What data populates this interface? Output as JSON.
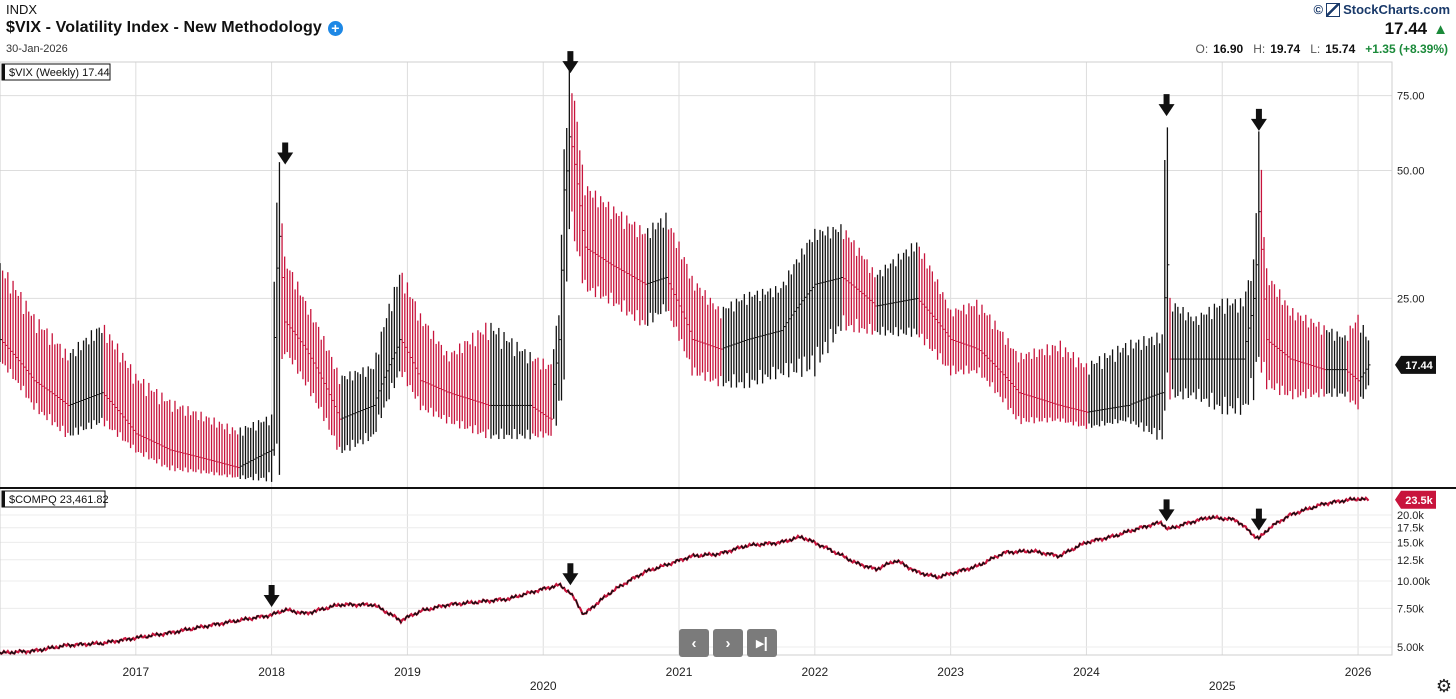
{
  "header": {
    "exchange": "INDX",
    "title": "$VIX - Volatility Index - New Methodology",
    "date": "30-Jan-2026",
    "plus_icon": "plus-circle-icon",
    "brand": "StockCharts.com",
    "copyright": "©",
    "last": "17.44",
    "up_glyph": "▲",
    "ohlc": {
      "o_label": "O:",
      "o": "16.90",
      "h_label": "H:",
      "h": "19.74",
      "l_label": "L:",
      "l": "15.74",
      "change": "+1.35 (+8.39%)"
    }
  },
  "controls": {
    "prev": "‹",
    "next": "›",
    "end": "▸|",
    "gear": "⚙"
  },
  "colors": {
    "up": "#111111",
    "down": "#c8143c",
    "grid": "#dddddd",
    "accent_green": "#1b8a3a",
    "badge_red": "#c8143c"
  },
  "chart_data": [
    {
      "type": "ohlc",
      "legend": "$VIX (Weekly) 17.44",
      "last_label": "17.44",
      "scale": "log",
      "ylim": [
        9,
        90
      ],
      "y_ticks": [
        25,
        50,
        75
      ],
      "y_tick_labels": [
        "25.00",
        "50.00",
        "75.00"
      ],
      "x_ticks": [
        "2017",
        "2018",
        "2019",
        "2020",
        "2021",
        "2022",
        "2023",
        "2024",
        "2025",
        "2026"
      ],
      "x_tick_dates": [
        2017.0,
        2018.0,
        2019.0,
        2020.0,
        2021.0,
        2022.0,
        2023.0,
        2024.0,
        2025.0,
        2026.0
      ],
      "xlim": [
        2016.0,
        2026.25
      ],
      "series": [
        {
          "x": [
            2016.0,
            2016.25,
            2016.5,
            2016.75,
            2017.0,
            2017.25,
            2017.5,
            2017.75,
            2018.0,
            2018.05,
            2018.1,
            2018.25,
            2018.5,
            2018.75,
            2018.95,
            2019.1,
            2019.3,
            2019.6,
            2019.9,
            2020.05,
            2020.12,
            2020.16,
            2020.2,
            2020.3,
            2020.5,
            2020.75,
            2020.9,
            2021.1,
            2021.3,
            2021.5,
            2021.75,
            2022.0,
            2022.2,
            2022.45,
            2022.75,
            2023.0,
            2023.2,
            2023.5,
            2023.8,
            2024.0,
            2024.3,
            2024.55,
            2024.59,
            2024.62,
            2024.8,
            2025.0,
            2025.15,
            2025.24,
            2025.27,
            2025.32,
            2025.5,
            2025.75,
            2025.9,
            2026.0,
            2026.08
          ],
          "high": [
            29,
            22,
            18,
            21,
            16,
            14,
            13,
            12,
            13,
            50,
            30,
            24,
            16,
            17,
            28,
            22,
            18,
            21,
            18,
            17,
            23,
            55,
            82,
            45,
            40,
            35,
            38,
            27,
            23,
            25,
            26,
            35,
            36,
            28,
            33,
            23,
            24,
            18,
            19,
            17,
            19,
            20,
            65,
            24,
            22,
            24,
            24,
            30,
            60,
            28,
            23,
            21,
            20,
            22,
            19.74
          ],
          "low": [
            18,
            14,
            12,
            13,
            11,
            10,
            9.8,
            9.5,
            9.5,
            13,
            19,
            16,
            11,
            12,
            17,
            14,
            13,
            12,
            12,
            12,
            14,
            19,
            40,
            27,
            25,
            22,
            24,
            17,
            16,
            16,
            17,
            18,
            22,
            21,
            21,
            17,
            17,
            13,
            13,
            12.5,
            13,
            12,
            16,
            15,
            15,
            14,
            14,
            16,
            20,
            16,
            15,
            15,
            15,
            14,
            15.74
          ],
          "close": [
            20,
            16,
            14,
            15,
            12,
            11,
            10.5,
            10,
            11,
            35,
            22,
            19,
            13,
            14,
            20,
            16,
            15,
            14,
            14,
            13,
            20,
            45,
            60,
            33,
            30,
            27,
            28,
            20,
            19,
            20,
            21,
            27,
            28,
            24,
            25,
            20,
            19,
            15,
            14,
            13.5,
            14,
            15,
            30,
            18,
            18,
            18,
            18,
            25,
            40,
            20,
            18,
            17,
            17,
            16,
            17.44
          ]
        }
      ]
    },
    {
      "type": "line",
      "legend": "$COMPQ 23,461.82",
      "last_label": "23.5k",
      "scale": "log",
      "ylim": [
        4600,
        26000
      ],
      "y_ticks": [
        5000,
        7500,
        10000,
        12500,
        15000,
        17500,
        20000
      ],
      "y_tick_labels": [
        "5.00k",
        "7.50k",
        "10.00k",
        "12.5k",
        "15.0k",
        "17.5k",
        "20.0k"
      ],
      "x": [
        2016.0,
        2016.25,
        2016.5,
        2016.75,
        2017.0,
        2017.25,
        2017.5,
        2017.75,
        2018.0,
        2018.1,
        2018.25,
        2018.5,
        2018.75,
        2018.95,
        2019.1,
        2019.3,
        2019.5,
        2019.75,
        2020.0,
        2020.12,
        2020.2,
        2020.3,
        2020.5,
        2020.75,
        2020.9,
        2021.1,
        2021.3,
        2021.5,
        2021.75,
        2021.9,
        2022.1,
        2022.3,
        2022.45,
        2022.6,
        2022.75,
        2022.9,
        2023.0,
        2023.2,
        2023.4,
        2023.6,
        2023.8,
        2024.0,
        2024.2,
        2024.4,
        2024.55,
        2024.6,
        2024.75,
        2024.9,
        2025.0,
        2025.1,
        2025.24,
        2025.27,
        2025.35,
        2025.5,
        2025.75,
        2025.9,
        2026.0,
        2026.08
      ],
      "y": [
        4700,
        4800,
        5100,
        5200,
        5500,
        5800,
        6200,
        6600,
        7000,
        7400,
        7100,
        7800,
        7800,
        6600,
        7300,
        7800,
        8000,
        8300,
        9200,
        9600,
        8800,
        7000,
        8900,
        11000,
        11800,
        13000,
        13300,
        14500,
        15000,
        15900,
        14000,
        12100,
        11300,
        12400,
        11000,
        10400,
        10800,
        11700,
        13500,
        13700,
        13000,
        15000,
        16000,
        17500,
        18500,
        17200,
        18400,
        19500,
        19300,
        19000,
        16000,
        15600,
        17500,
        20000,
        22500,
        23300,
        23700,
        23461.82
      ]
    }
  ],
  "markers": [
    {
      "panel": 0,
      "x": 2018.1,
      "y": 50
    },
    {
      "panel": 0,
      "x": 2020.2,
      "y": 82
    },
    {
      "panel": 0,
      "x": 2024.59,
      "y": 65
    },
    {
      "panel": 0,
      "x": 2025.27,
      "y": 60
    },
    {
      "panel": 1,
      "x": 2018.0,
      "y": 7000
    },
    {
      "panel": 1,
      "x": 2020.2,
      "y": 8800
    },
    {
      "panel": 1,
      "x": 2024.59,
      "y": 17200
    },
    {
      "panel": 1,
      "x": 2025.27,
      "y": 15600
    }
  ]
}
